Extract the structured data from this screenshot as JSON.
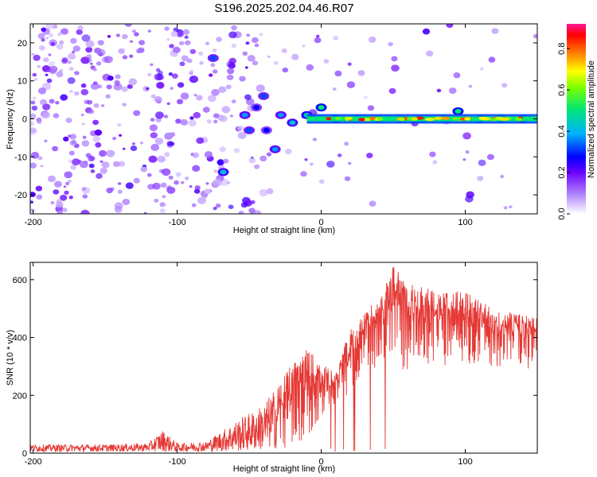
{
  "title": "S196.2025.202.04.46.R07",
  "colors": {
    "snr_line": "#e53935",
    "axis": "#000000",
    "background": "#ffffff"
  },
  "chart_data": [
    {
      "type": "heatmap",
      "xlabel": "Height of straight line (km)",
      "ylabel": "Frequency (Hz)",
      "xlim": [
        -202,
        150
      ],
      "ylim": [
        -25,
        25
      ],
      "xticks": [
        -200,
        -100,
        0,
        100
      ],
      "yticks": [
        -20,
        -10,
        0,
        10,
        20
      ],
      "colorbar": {
        "label": "Normalized spectral amplitude",
        "range": [
          0,
          0.92
        ],
        "ticks": [
          0.0,
          0.2,
          0.4,
          0.6,
          0.8
        ]
      },
      "ridge": [
        [
          -75,
          16,
          0.35
        ],
        [
          -68,
          -14,
          0.45
        ],
        [
          -53,
          1,
          0.4
        ],
        [
          -50,
          -3,
          0.35
        ],
        [
          -45,
          3,
          0.3
        ],
        [
          -40,
          6,
          0.35
        ],
        [
          -38,
          -3,
          0.3
        ],
        [
          -32,
          -8,
          0.4
        ],
        [
          -28,
          1,
          0.4
        ],
        [
          -20,
          -1,
          0.45
        ],
        [
          -10,
          1,
          0.5
        ],
        [
          0,
          3,
          0.55
        ],
        [
          10,
          0,
          0.6
        ],
        [
          25,
          0,
          0.85
        ],
        [
          40,
          0,
          0.7
        ],
        [
          55,
          0,
          0.75
        ],
        [
          70,
          0,
          0.8
        ],
        [
          85,
          0,
          0.75
        ],
        [
          95,
          2,
          0.55
        ],
        [
          110,
          0,
          0.65
        ],
        [
          125,
          0,
          0.6
        ],
        [
          140,
          0,
          0.55
        ]
      ]
    },
    {
      "type": "line",
      "xlabel": "Height of straight line (km)",
      "ylabel": "SNR (10 * v/v)",
      "xlim": [
        -202,
        150
      ],
      "ylim": [
        0,
        660
      ],
      "xticks": [
        -200,
        -100,
        0,
        100
      ],
      "yticks": [
        0,
        200,
        400,
        600
      ],
      "series": [
        {
          "envelope": {
            "x": [
              -200,
              -150,
              -120,
              -110,
              -100,
              -80,
              -60,
              -40,
              -20,
              -10,
              0,
              10,
              20,
              30,
              40,
              50,
              60,
              80,
              100,
              120,
              150
            ],
            "low": [
              5,
              5,
              5,
              5,
              5,
              5,
              5,
              10,
              20,
              40,
              120,
              160,
              200,
              260,
              300,
              280,
              290,
              300,
              310,
              300,
              290
            ],
            "high": [
              30,
              30,
              35,
              80,
              35,
              40,
              110,
              170,
              310,
              370,
              320,
              280,
              430,
              480,
              560,
              660,
              590,
              560,
              560,
              500,
              470
            ]
          }
        }
      ]
    }
  ]
}
